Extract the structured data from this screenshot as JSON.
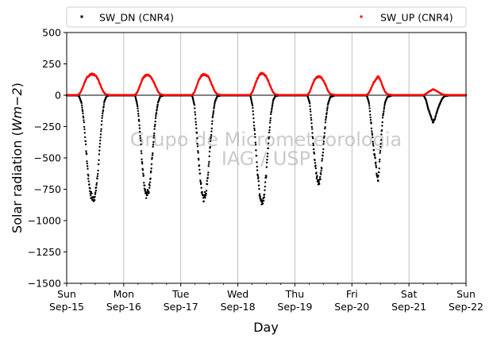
{
  "chart_data": {
    "type": "scatter",
    "title": "",
    "xlabel": "Day",
    "ylabel_main": "Solar radiation (",
    "ylabel_unit": "Wm−2",
    "ylabel_close": ")",
    "ylim": [
      -1500,
      500
    ],
    "yticks": [
      500,
      250,
      0,
      -250,
      -500,
      -750,
      -1000,
      -1250,
      -1500
    ],
    "ytick_labels": [
      "500",
      "250",
      "0",
      "−250",
      "−500",
      "−750",
      "−1000",
      "−1250",
      "−1500"
    ],
    "xlim": [
      0,
      7
    ],
    "xticks": [
      {
        "x": 0,
        "weekday": "Sun",
        "date": "Sep-15"
      },
      {
        "x": 1,
        "weekday": "Mon",
        "date": "Sep-16"
      },
      {
        "x": 2,
        "weekday": "Tue",
        "date": "Sep-17"
      },
      {
        "x": 3,
        "weekday": "Wed",
        "date": "Sep-18"
      },
      {
        "x": 4,
        "weekday": "Thu",
        "date": "Sep-19"
      },
      {
        "x": 5,
        "weekday": "Fri",
        "date": "Sep-20"
      },
      {
        "x": 6,
        "weekday": "Sat",
        "date": "Sep-21"
      },
      {
        "x": 7,
        "weekday": "Sun",
        "date": "Sep-22"
      }
    ],
    "grid": "vertical",
    "legend_placement": "top",
    "watermark_lines": [
      "Grupo de Micrometeorologia",
      "IAG / USP"
    ],
    "series": [
      {
        "name": "SW_DN (CNR4)",
        "color": "#000000",
        "points": [
          [
            0.0,
            -2
          ],
          [
            0.2,
            -2
          ],
          [
            0.22,
            -12
          ],
          [
            0.26,
            -60
          ],
          [
            0.3,
            -200
          ],
          [
            0.34,
            -430
          ],
          [
            0.38,
            -660
          ],
          [
            0.42,
            -790
          ],
          [
            0.46,
            -830
          ],
          [
            0.5,
            -800
          ],
          [
            0.54,
            -650
          ],
          [
            0.58,
            -420
          ],
          [
            0.62,
            -180
          ],
          [
            0.66,
            -50
          ],
          [
            0.7,
            -8
          ],
          [
            0.74,
            -2
          ],
          [
            0.9,
            -2
          ],
          [
            1.0,
            -2
          ],
          [
            1.2,
            -2
          ],
          [
            1.24,
            -80
          ],
          [
            1.28,
            -260
          ],
          [
            1.32,
            -520
          ],
          [
            1.36,
            -710
          ],
          [
            1.4,
            -800
          ],
          [
            1.44,
            -760
          ],
          [
            1.48,
            -600
          ],
          [
            1.52,
            -380
          ],
          [
            1.56,
            -180
          ],
          [
            1.6,
            -60
          ],
          [
            1.64,
            -10
          ],
          [
            1.7,
            -2
          ],
          [
            1.9,
            -2
          ],
          [
            2.0,
            -2
          ],
          [
            2.2,
            -2
          ],
          [
            2.24,
            -80
          ],
          [
            2.28,
            -300
          ],
          [
            2.32,
            -560
          ],
          [
            2.36,
            -740
          ],
          [
            2.4,
            -820
          ],
          [
            2.44,
            -780
          ],
          [
            2.48,
            -620
          ],
          [
            2.52,
            -380
          ],
          [
            2.56,
            -170
          ],
          [
            2.6,
            -50
          ],
          [
            2.64,
            -8
          ],
          [
            2.7,
            -2
          ],
          [
            2.9,
            -2
          ],
          [
            3.0,
            -2
          ],
          [
            3.22,
            -2
          ],
          [
            3.26,
            -90
          ],
          [
            3.3,
            -320
          ],
          [
            3.34,
            -580
          ],
          [
            3.38,
            -780
          ],
          [
            3.42,
            -860
          ],
          [
            3.46,
            -800
          ],
          [
            3.5,
            -620
          ],
          [
            3.54,
            -360
          ],
          [
            3.58,
            -150
          ],
          [
            3.62,
            -40
          ],
          [
            3.66,
            -6
          ],
          [
            3.72,
            -2
          ],
          [
            3.9,
            -2
          ],
          [
            4.0,
            -2
          ],
          [
            4.22,
            -2
          ],
          [
            4.26,
            -60
          ],
          [
            4.3,
            -260
          ],
          [
            4.34,
            -480
          ],
          [
            4.38,
            -640
          ],
          [
            4.42,
            -700
          ],
          [
            4.46,
            -620
          ],
          [
            4.5,
            -420
          ],
          [
            4.54,
            -200
          ],
          [
            4.58,
            -70
          ],
          [
            4.62,
            -15
          ],
          [
            4.7,
            -2
          ],
          [
            4.9,
            -2
          ],
          [
            5.0,
            -2
          ],
          [
            5.26,
            -2
          ],
          [
            5.3,
            -60
          ],
          [
            5.34,
            -240
          ],
          [
            5.38,
            -420
          ],
          [
            5.42,
            -560
          ],
          [
            5.46,
            -700
          ],
          [
            5.5,
            -420
          ],
          [
            5.54,
            -180
          ],
          [
            5.58,
            -60
          ],
          [
            5.62,
            -15
          ],
          [
            5.7,
            -2
          ],
          [
            5.9,
            -2
          ],
          [
            6.0,
            -2
          ],
          [
            6.26,
            -2
          ],
          [
            6.3,
            -40
          ],
          [
            6.34,
            -110
          ],
          [
            6.38,
            -160
          ],
          [
            6.42,
            -220
          ],
          [
            6.46,
            -180
          ],
          [
            6.5,
            -120
          ],
          [
            6.54,
            -70
          ],
          [
            6.58,
            -30
          ],
          [
            6.62,
            -8
          ],
          [
            6.7,
            -2
          ],
          [
            6.9,
            -2
          ],
          [
            7.0,
            -2
          ]
        ]
      },
      {
        "name": "SW_UP (CNR4)",
        "color": "#ff0000",
        "points": [
          [
            0.0,
            2
          ],
          [
            0.2,
            2
          ],
          [
            0.24,
            20
          ],
          [
            0.28,
            60
          ],
          [
            0.32,
            110
          ],
          [
            0.36,
            145
          ],
          [
            0.4,
            160
          ],
          [
            0.44,
            168
          ],
          [
            0.48,
            165
          ],
          [
            0.52,
            150
          ],
          [
            0.56,
            115
          ],
          [
            0.6,
            70
          ],
          [
            0.64,
            30
          ],
          [
            0.68,
            8
          ],
          [
            0.74,
            2
          ],
          [
            0.9,
            2
          ],
          [
            1.0,
            2
          ],
          [
            1.2,
            2
          ],
          [
            1.24,
            25
          ],
          [
            1.28,
            70
          ],
          [
            1.32,
            120
          ],
          [
            1.36,
            150
          ],
          [
            1.4,
            162
          ],
          [
            1.44,
            160
          ],
          [
            1.48,
            145
          ],
          [
            1.52,
            110
          ],
          [
            1.56,
            70
          ],
          [
            1.6,
            30
          ],
          [
            1.64,
            8
          ],
          [
            1.7,
            2
          ],
          [
            1.9,
            2
          ],
          [
            2.0,
            2
          ],
          [
            2.2,
            2
          ],
          [
            2.24,
            25
          ],
          [
            2.28,
            75
          ],
          [
            2.32,
            125
          ],
          [
            2.36,
            155
          ],
          [
            2.4,
            165
          ],
          [
            2.44,
            162
          ],
          [
            2.48,
            148
          ],
          [
            2.52,
            112
          ],
          [
            2.56,
            68
          ],
          [
            2.6,
            28
          ],
          [
            2.64,
            8
          ],
          [
            2.7,
            2
          ],
          [
            2.9,
            2
          ],
          [
            3.0,
            2
          ],
          [
            3.22,
            2
          ],
          [
            3.26,
            30
          ],
          [
            3.3,
            80
          ],
          [
            3.34,
            130
          ],
          [
            3.38,
            162
          ],
          [
            3.42,
            175
          ],
          [
            3.46,
            168
          ],
          [
            3.5,
            148
          ],
          [
            3.54,
            108
          ],
          [
            3.58,
            60
          ],
          [
            3.62,
            22
          ],
          [
            3.66,
            6
          ],
          [
            3.72,
            2
          ],
          [
            3.9,
            2
          ],
          [
            4.0,
            2
          ],
          [
            4.22,
            2
          ],
          [
            4.26,
            25
          ],
          [
            4.3,
            75
          ],
          [
            4.34,
            118
          ],
          [
            4.38,
            142
          ],
          [
            4.42,
            150
          ],
          [
            4.46,
            144
          ],
          [
            4.5,
            120
          ],
          [
            4.54,
            80
          ],
          [
            4.58,
            35
          ],
          [
            4.62,
            10
          ],
          [
            4.7,
            2
          ],
          [
            4.9,
            2
          ],
          [
            5.0,
            2
          ],
          [
            5.26,
            2
          ],
          [
            5.3,
            20
          ],
          [
            5.34,
            60
          ],
          [
            5.38,
            100
          ],
          [
            5.42,
            125
          ],
          [
            5.46,
            150
          ],
          [
            5.5,
            120
          ],
          [
            5.54,
            70
          ],
          [
            5.58,
            28
          ],
          [
            5.62,
            8
          ],
          [
            5.7,
            2
          ],
          [
            5.9,
            2
          ],
          [
            6.0,
            2
          ],
          [
            6.26,
            2
          ],
          [
            6.3,
            12
          ],
          [
            6.34,
            25
          ],
          [
            6.38,
            35
          ],
          [
            6.42,
            48
          ],
          [
            6.46,
            40
          ],
          [
            6.5,
            30
          ],
          [
            6.54,
            18
          ],
          [
            6.58,
            8
          ],
          [
            6.62,
            3
          ],
          [
            6.7,
            2
          ],
          [
            6.9,
            2
          ],
          [
            7.0,
            2
          ]
        ]
      }
    ]
  }
}
